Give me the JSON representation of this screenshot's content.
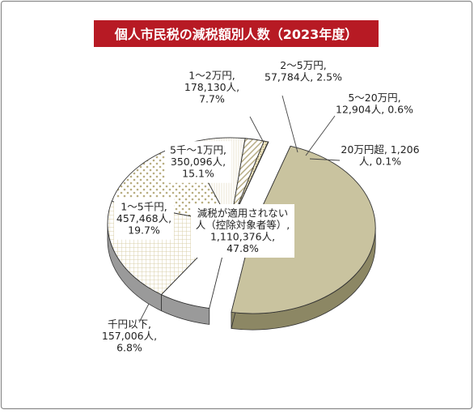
{
  "chart_data": {
    "type": "pie",
    "title": "個人市民税の減税額別人数（2023年度）",
    "colors": {
      "title_band": "#b71a24",
      "title_text": "#ffffff",
      "background": "#ffffff",
      "frame_border": "#8a8a8a",
      "exploded_slice": "#c9c39f",
      "exploded_slice_side": "#8c8764",
      "slice_outline": "#333333",
      "side_gray": "#9a9a9a"
    },
    "slices": [
      {
        "label_lines": [
          "減税が適用されない",
          "人（控除対象者等）,",
          "1,110,376人,",
          "47.8%"
        ],
        "category": "減税が適用されない人（控除対象者等）",
        "value": 1110376,
        "percent": 47.8,
        "pattern": "solid-olive",
        "exploded": true
      },
      {
        "label_lines": [
          "千円以下,",
          "157,006人,",
          "6.8%"
        ],
        "category": "千円以下",
        "value": 157006,
        "percent": 6.8,
        "pattern": "solid-white"
      },
      {
        "label_lines": [
          "1～5千円,",
          "457,468人,",
          "19.7%"
        ],
        "category": "1～5千円",
        "value": 457468,
        "percent": 19.7,
        "pattern": "grid"
      },
      {
        "label_lines": [
          "5千～1万円,",
          "350,096人,",
          "15.1%"
        ],
        "category": "5千～1万円",
        "value": 350096,
        "percent": 15.1,
        "pattern": "diamond-dots"
      },
      {
        "label_lines": [
          "1～2万円,",
          "178,130人,",
          "7.7%"
        ],
        "category": "1～2万円",
        "value": 178130,
        "percent": 7.7,
        "pattern": "vertical-lines"
      },
      {
        "label_lines": [
          "2～5万円,",
          "57,784人, 2.5%"
        ],
        "category": "2～5万円",
        "value": 57784,
        "percent": 2.5,
        "pattern": "diagonal"
      },
      {
        "label_lines": [
          "5～20万円,",
          "12,904人, 0.6%"
        ],
        "category": "5～20万円",
        "value": 12904,
        "percent": 0.6,
        "pattern": "dots"
      },
      {
        "label_lines": [
          "20万円超, 1,206",
          "人, 0.1%"
        ],
        "category": "20万円超",
        "value": 1206,
        "percent": 0.1,
        "pattern": "solid-tan"
      }
    ],
    "legend": "none",
    "grid": false,
    "start_angle_deg": -90,
    "direction": "clockwise-from-top, exploded slice first",
    "style": "3d-tilted-pie"
  }
}
